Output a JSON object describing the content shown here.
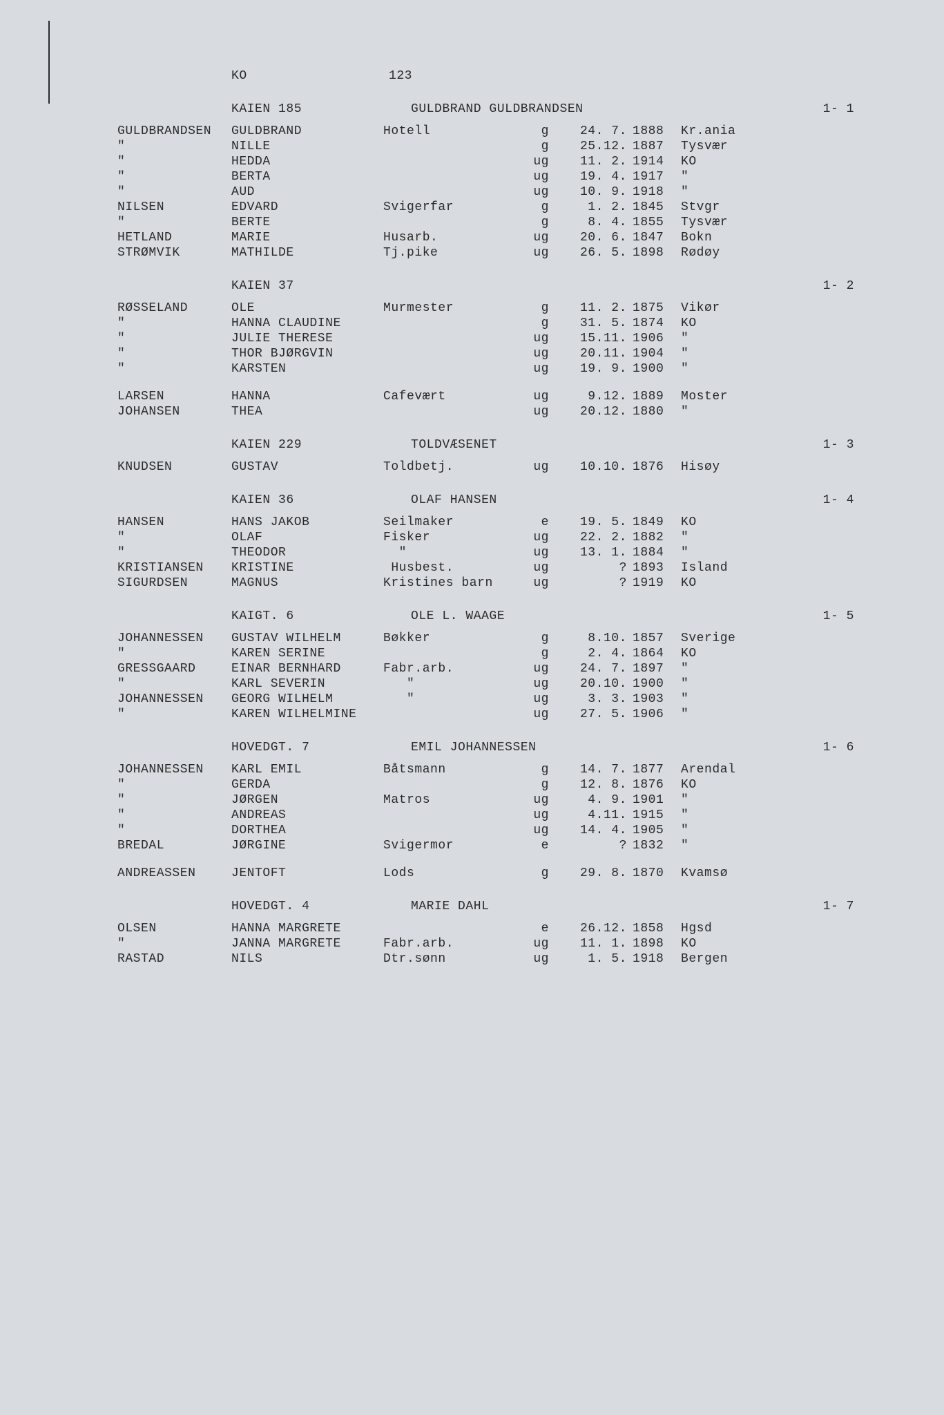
{
  "header": {
    "code": "KO",
    "page_number": "123"
  },
  "sections": [
    {
      "address": "KAIEN 185",
      "owner": "GULDBRAND GULDBRANDSEN",
      "ref": "1-  1",
      "entries": [
        {
          "surname": "GULDBRANDSEN",
          "given": "GULDBRAND",
          "occ": "Hotell",
          "status": "g",
          "date": "24. 7.",
          "year": "1888",
          "place": "Kr.ania"
        },
        {
          "surname": "\"",
          "given": "NILLE",
          "occ": "",
          "status": "g",
          "date": "25.12.",
          "year": "1887",
          "place": "Tysvær"
        },
        {
          "surname": "\"",
          "given": "HEDDA",
          "occ": "",
          "status": "ug",
          "date": "11. 2.",
          "year": "1914",
          "place": "KO"
        },
        {
          "surname": "\"",
          "given": "BERTA",
          "occ": "",
          "status": "ug",
          "date": "19. 4.",
          "year": "1917",
          "place": "\""
        },
        {
          "surname": "\"",
          "given": "AUD",
          "occ": "",
          "status": "ug",
          "date": "10. 9.",
          "year": "1918",
          "place": "\""
        },
        {
          "surname": "NILSEN",
          "given": "EDVARD",
          "occ": "Svigerfar",
          "status": "g",
          "date": "1. 2.",
          "year": "1845",
          "place": "Stvgr"
        },
        {
          "surname": "\"",
          "given": "BERTE",
          "occ": "",
          "status": "g",
          "date": "8. 4.",
          "year": "1855",
          "place": "Tysvær"
        },
        {
          "surname": "HETLAND",
          "given": "MARIE",
          "occ": "Husarb.",
          "status": "ug",
          "date": "20. 6.",
          "year": "1847",
          "place": "Bokn"
        },
        {
          "surname": "STRØMVIK",
          "given": "MATHILDE",
          "occ": "Tj.pike",
          "status": "ug",
          "date": "26. 5.",
          "year": "1898",
          "place": "Rødøy"
        }
      ]
    },
    {
      "address": "KAIEN 37",
      "owner": "",
      "ref": "1-  2",
      "entries": [
        {
          "surname": "RØSSELAND",
          "given": "OLE",
          "occ": "Murmester",
          "status": "g",
          "date": "11. 2.",
          "year": "1875",
          "place": "Vikør"
        },
        {
          "surname": "\"",
          "given": "HANNA CLAUDINE",
          "occ": "",
          "status": "g",
          "date": "31. 5.",
          "year": "1874",
          "place": "KO"
        },
        {
          "surname": "\"",
          "given": "JULIE THERESE",
          "occ": "",
          "status": "ug",
          "date": "15.11.",
          "year": "1906",
          "place": "\""
        },
        {
          "surname": "\"",
          "given": "THOR BJØRGVIN",
          "occ": "",
          "status": "ug",
          "date": "20.11.",
          "year": "1904",
          "place": "\""
        },
        {
          "surname": "\"",
          "given": "KARSTEN",
          "occ": "",
          "status": "ug",
          "date": "19. 9.",
          "year": "1900",
          "place": "\""
        }
      ],
      "extra": [
        {
          "surname": "LARSEN",
          "given": "HANNA",
          "occ": "Cafevært",
          "status": "ug",
          "date": "9.12.",
          "year": "1889",
          "place": "Moster"
        },
        {
          "surname": "JOHANSEN",
          "given": "THEA",
          "occ": "",
          "status": "ug",
          "date": "20.12.",
          "year": "1880",
          "place": "\""
        }
      ]
    },
    {
      "address": "KAIEN 229",
      "owner": "TOLDVÆSENET",
      "ref": "1-  3",
      "entries": [
        {
          "surname": "KNUDSEN",
          "given": "GUSTAV",
          "occ": "Toldbetj.",
          "status": "ug",
          "date": "10.10.",
          "year": "1876",
          "place": "Hisøy"
        }
      ]
    },
    {
      "address": "KAIEN 36",
      "owner": "OLAF HANSEN",
      "ref": "1-  4",
      "entries": [
        {
          "surname": "HANSEN",
          "given": "HANS JAKOB",
          "occ": "Seilmaker",
          "status": "e",
          "date": "19. 5.",
          "year": "1849",
          "place": "KO"
        },
        {
          "surname": "\"",
          "given": "OLAF",
          "occ": "Fisker",
          "status": "ug",
          "date": "22. 2.",
          "year": "1882",
          "place": "\""
        },
        {
          "surname": "\"",
          "given": "THEODOR",
          "occ": "  \"",
          "status": "ug",
          "date": "13. 1.",
          "year": "1884",
          "place": "\""
        },
        {
          "surname": "KRISTIANSEN",
          "given": "KRISTINE",
          "occ": " Husbest.",
          "status": "ug",
          "date": "?",
          "year": "1893",
          "place": "Island"
        },
        {
          "surname": "SIGURDSEN",
          "given": "MAGNUS",
          "occ": "Kristines barn",
          "status": "ug",
          "date": "?",
          "year": "1919",
          "place": "KO"
        }
      ]
    },
    {
      "address": "KAIGT. 6",
      "owner": "OLE L. WAAGE",
      "ref": "1-  5",
      "entries": [
        {
          "surname": "JOHANNESSEN",
          "given": "GUSTAV WILHELM",
          "occ": "Bøkker",
          "status": "g",
          "date": "8.10.",
          "year": "1857",
          "place": "Sverige"
        },
        {
          "surname": "\"",
          "given": "KAREN SERINE",
          "occ": "",
          "status": "g",
          "date": "2. 4.",
          "year": "1864",
          "place": "KO"
        },
        {
          "surname": "GRESSGAARD",
          "given": "EINAR BERNHARD",
          "occ": "Fabr.arb.",
          "status": "ug",
          "date": "24. 7.",
          "year": "1897",
          "place": "\""
        },
        {
          "surname": "\"",
          "given": "KARL SEVERIN",
          "occ": "   \"",
          "status": "ug",
          "date": "20.10.",
          "year": "1900",
          "place": "\""
        },
        {
          "surname": "JOHANNESSEN",
          "given": "GEORG WILHELM",
          "occ": "   \"",
          "status": "ug",
          "date": "3. 3.",
          "year": "1903",
          "place": "\""
        },
        {
          "surname": "\"",
          "given": "KAREN WILHELMINE",
          "occ": "",
          "status": "ug",
          "date": "27. 5.",
          "year": "1906",
          "place": "\""
        }
      ]
    },
    {
      "address": "HOVEDGT. 7",
      "owner": "EMIL JOHANNESSEN",
      "ref": "1-  6",
      "entries": [
        {
          "surname": "JOHANNESSEN",
          "given": "KARL EMIL",
          "occ": "Båtsmann",
          "status": "g",
          "date": "14. 7.",
          "year": "1877",
          "place": "Arendal"
        },
        {
          "surname": "\"",
          "given": "GERDA",
          "occ": "",
          "status": "g",
          "date": "12. 8.",
          "year": "1876",
          "place": "KO"
        },
        {
          "surname": "\"",
          "given": "JØRGEN",
          "occ": "Matros",
          "status": "ug",
          "date": "4. 9.",
          "year": "1901",
          "place": "\""
        },
        {
          "surname": "\"",
          "given": "ANDREAS",
          "occ": "",
          "status": "ug",
          "date": "4.11.",
          "year": "1915",
          "place": "\""
        },
        {
          "surname": "\"",
          "given": "DORTHEA",
          "occ": "",
          "status": "ug",
          "date": "14. 4.",
          "year": "1905",
          "place": "\""
        },
        {
          "surname": "BREDAL",
          "given": "JØRGINE",
          "occ": "Svigermor",
          "status": "e",
          "date": "?",
          "year": "1832",
          "place": "\""
        }
      ],
      "extra": [
        {
          "surname": "ANDREASSEN",
          "given": "JENTOFT",
          "occ": "Lods",
          "status": "g",
          "date": "29. 8.",
          "year": "1870",
          "place": "Kvamsø"
        }
      ]
    },
    {
      "address": "HOVEDGT. 4",
      "owner": "MARIE DAHL",
      "ref": "1-  7",
      "entries": [
        {
          "surname": "OLSEN",
          "given": "HANNA MARGRETE",
          "occ": "",
          "status": "e",
          "date": "26.12.",
          "year": "1858",
          "place": "Hgsd"
        },
        {
          "surname": "\"",
          "given": "JANNA MARGRETE",
          "occ": "Fabr.arb.",
          "status": "ug",
          "date": "11. 1.",
          "year": "1898",
          "place": "KO"
        },
        {
          "surname": "RASTAD",
          "given": "NILS",
          "occ": "Dtr.sønn",
          "status": "ug",
          "date": "1. 5.",
          "year": "1918",
          "place": "Bergen"
        }
      ]
    }
  ]
}
